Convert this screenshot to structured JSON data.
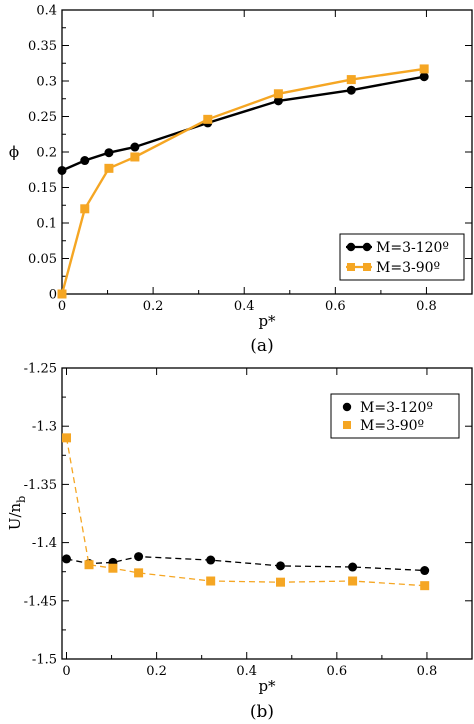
{
  "chart_data": [
    {
      "type": "line",
      "panel_label": "(a)",
      "xlabel": "p*",
      "ylabel": "ϕ",
      "xlim": [
        0,
        0.9
      ],
      "ylim": [
        0,
        0.4
      ],
      "xticks": [
        0,
        0.2,
        0.4,
        0.6,
        0.8
      ],
      "xtick_labels": [
        "0",
        "0.2",
        "0.4",
        "0.6",
        "0.8"
      ],
      "yticks": [
        0,
        0.05,
        0.1,
        0.15,
        0.2,
        0.25,
        0.3,
        0.35,
        0.4
      ],
      "ytick_labels": [
        "0",
        "0.05",
        "0.1",
        "0.15",
        "0.2",
        "0.25",
        "0.3",
        "0.35",
        "0.4"
      ],
      "legend_position": "lower-right",
      "grid": false,
      "series": [
        {
          "name": "M=3-120º",
          "color": "#000000",
          "marker": "circle",
          "line": "solid",
          "x": [
            0,
            0.05,
            0.103,
            0.16,
            0.32,
            0.475,
            0.635,
            0.795
          ],
          "y": [
            0.174,
            0.188,
            0.199,
            0.207,
            0.241,
            0.272,
            0.287,
            0.306
          ]
        },
        {
          "name": "M=3-90º",
          "color": "#f5a623",
          "marker": "square",
          "line": "solid",
          "x": [
            0,
            0.05,
            0.103,
            0.16,
            0.32,
            0.475,
            0.635,
            0.795
          ],
          "y": [
            0.0,
            0.12,
            0.177,
            0.193,
            0.246,
            0.282,
            0.302,
            0.317
          ]
        }
      ]
    },
    {
      "type": "scatter",
      "panel_label": "(b)",
      "xlabel": "p*",
      "ylabel": "U/n",
      "ylabel_sub": "b",
      "xlim": [
        -0.01,
        0.9
      ],
      "ylim": [
        -1.5,
        -1.25
      ],
      "xticks": [
        0,
        0.2,
        0.4,
        0.6,
        0.8
      ],
      "xtick_labels": [
        "0",
        "0.2",
        "0.4",
        "0.6",
        "0.8"
      ],
      "yticks": [
        -1.25,
        -1.3,
        -1.35,
        -1.4,
        -1.45,
        -1.5
      ],
      "ytick_labels": [
        "-1.25",
        "-1.3",
        "-1.35",
        "-1.4",
        "-1.45",
        "-1.5"
      ],
      "legend_position": "top-right",
      "grid": false,
      "series": [
        {
          "name": "M=3-120º",
          "color": "#000000",
          "marker": "circle",
          "line": "dashed",
          "x": [
            0,
            0.05,
            0.103,
            0.16,
            0.32,
            0.475,
            0.635,
            0.795
          ],
          "y": [
            -1.414,
            -1.418,
            -1.417,
            -1.412,
            -1.415,
            -1.42,
            -1.421,
            -1.424
          ]
        },
        {
          "name": "M=3-90º",
          "color": "#f5a623",
          "marker": "square",
          "line": "dashed",
          "x": [
            0,
            0.05,
            0.103,
            0.16,
            0.32,
            0.475,
            0.635,
            0.795
          ],
          "y": [
            -1.31,
            -1.419,
            -1.422,
            -1.426,
            -1.433,
            -1.434,
            -1.433,
            -1.437
          ]
        }
      ]
    }
  ]
}
